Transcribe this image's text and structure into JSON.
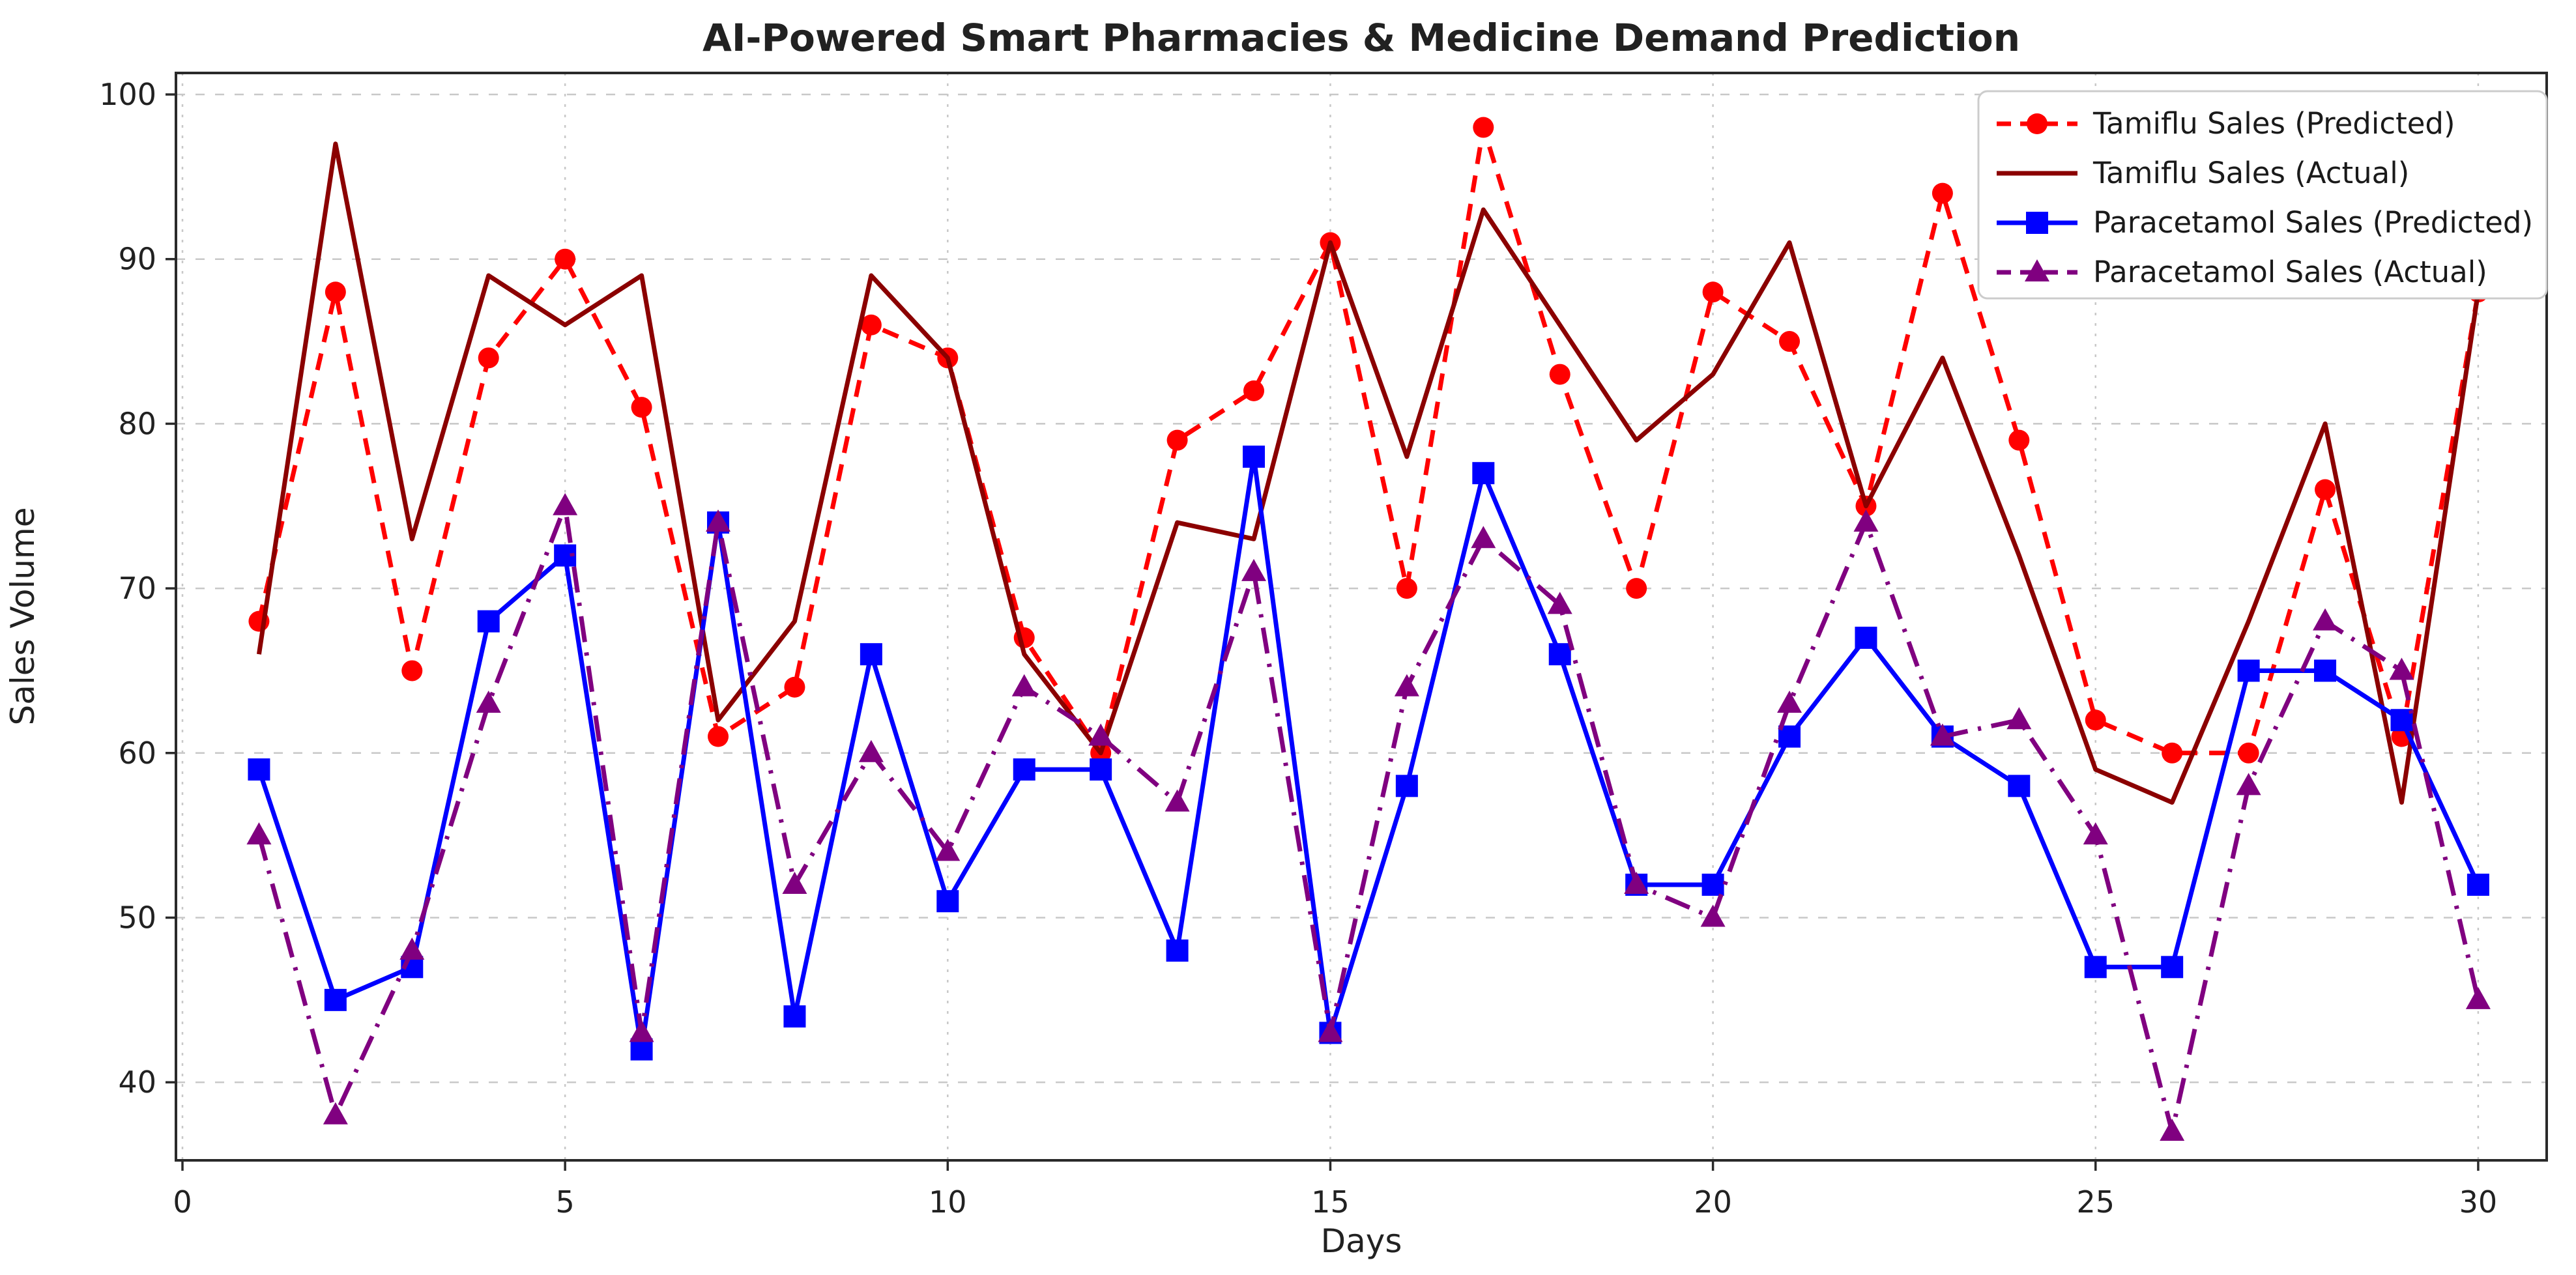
{
  "chart_data": {
    "type": "line",
    "title": "AI-Powered Smart Pharmacies & Medicine Demand Prediction",
    "xlabel": "Days",
    "ylabel": "Sales Volume",
    "x": [
      1,
      2,
      3,
      4,
      5,
      6,
      7,
      8,
      9,
      10,
      11,
      12,
      13,
      14,
      15,
      16,
      17,
      18,
      19,
      20,
      21,
      22,
      23,
      24,
      25,
      26,
      27,
      28,
      29,
      30
    ],
    "x_ticks": [
      0,
      5,
      10,
      15,
      20,
      25,
      30
    ],
    "y_ticks": [
      40,
      50,
      60,
      70,
      80,
      90,
      100
    ],
    "xlim": [
      -0.09,
      30.9
    ],
    "ylim": [
      35.2,
      101.3
    ],
    "grid": true,
    "legend_position": "upper right",
    "colors": {
      "grid": "#c8c8c8",
      "axis": "#2a2a2a",
      "text": "#212121",
      "legend_border": "#cccccc",
      "background": "#ffffff"
    },
    "series": [
      {
        "name": "Tamiflu Sales (Predicted)",
        "color": "#ff0000",
        "linestyle": "dashed",
        "marker": "circle",
        "values": [
          68,
          88,
          65,
          84,
          90,
          81,
          61,
          64,
          86,
          84,
          67,
          60,
          79,
          82,
          91,
          70,
          98,
          83,
          70,
          88,
          85,
          75,
          94,
          79,
          62,
          60,
          60,
          76,
          61,
          88
        ]
      },
      {
        "name": "Tamiflu Sales (Actual)",
        "color": "#8b0000",
        "linestyle": "solid",
        "marker": "none",
        "values": [
          66,
          97,
          73,
          89,
          86,
          89,
          62,
          68,
          89,
          84,
          66,
          60,
          74,
          73,
          91,
          78,
          93,
          86,
          79,
          83,
          91,
          75,
          84,
          72,
          59,
          57,
          68,
          80,
          57,
          88
        ]
      },
      {
        "name": "Paracetamol Sales (Predicted)",
        "color": "#0000ff",
        "linestyle": "solid",
        "marker": "square",
        "values": [
          59,
          45,
          47,
          68,
          72,
          42,
          74,
          44,
          66,
          51,
          59,
          59,
          48,
          78,
          43,
          58,
          77,
          66,
          52,
          52,
          61,
          67,
          61,
          58,
          47,
          47,
          65,
          65,
          62,
          52
        ]
      },
      {
        "name": "Paracetamol Sales (Actual)",
        "color": "#800080",
        "linestyle": "dashdot",
        "marker": "triangle",
        "values": [
          55,
          38,
          48,
          63,
          75,
          43,
          74,
          52,
          60,
          54,
          64,
          61,
          57,
          71,
          43,
          64,
          73,
          69,
          52,
          50,
          63,
          74,
          61,
          62,
          55,
          37,
          58,
          68,
          65,
          45
        ]
      }
    ]
  }
}
